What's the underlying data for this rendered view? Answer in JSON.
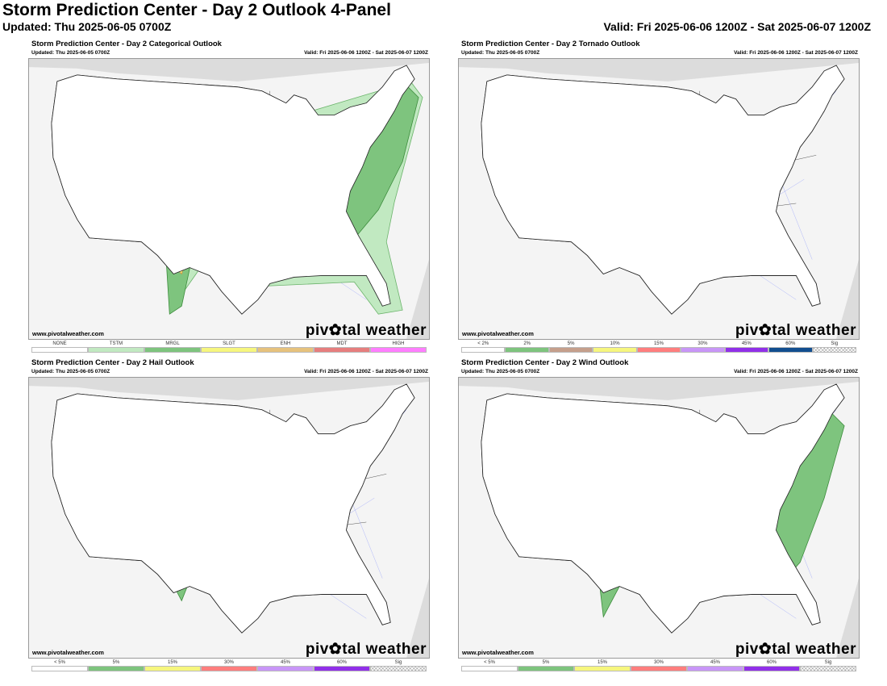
{
  "header": {
    "title": "Storm Prediction Center - Day 2 Outlook 4-Panel",
    "updated": "Updated: Thu 2025-06-05 0700Z",
    "valid": "Valid: Fri 2025-06-06 1200Z - Sat 2025-06-07 1200Z"
  },
  "panels": [
    {
      "title": "Storm Prediction Center - Day 2 Categorical Outlook",
      "updated": "Updated: Thu 2025-06-05 0700Z",
      "valid": "Valid: Fri 2025-06-06 1200Z - Sat 2025-06-07 1200Z",
      "site": "www.pivotalweather.com",
      "brand": "piv✿tal weather",
      "legend": [
        {
          "label": "NONE",
          "color": "#ffffff"
        },
        {
          "label": "TSTM",
          "color": "#c1e9c1"
        },
        {
          "label": "MRGL",
          "color": "#7ec47e"
        },
        {
          "label": "SLGT",
          "color": "#f6f67e"
        },
        {
          "label": "ENH",
          "color": "#e6c27d"
        },
        {
          "label": "MDT",
          "color": "#e67e7e"
        },
        {
          "label": "HIGH",
          "color": "#ff7eff"
        }
      ]
    },
    {
      "title": "Storm Prediction Center - Day 2 Tornado Outlook",
      "updated": "Updated: Thu 2025-06-05 0700Z",
      "valid": "Valid: Fri 2025-06-06 1200Z - Sat 2025-06-07 1200Z",
      "site": "www.pivotalweather.com",
      "brand": "piv✿tal weather",
      "legend": [
        {
          "label": "< 2%",
          "color": "#ffffff"
        },
        {
          "label": "2%",
          "color": "#7ec47e"
        },
        {
          "label": "5%",
          "color": "#c59f8c"
        },
        {
          "label": "10%",
          "color": "#f6f67e"
        },
        {
          "label": "15%",
          "color": "#ff7e7e"
        },
        {
          "label": "30%",
          "color": "#c896f7"
        },
        {
          "label": "45%",
          "color": "#9130e8"
        },
        {
          "label": "60%",
          "color": "#124e8f"
        },
        {
          "label": "Sig",
          "color": "sig"
        }
      ]
    },
    {
      "title": "Storm Prediction Center - Day 2 Hail Outlook",
      "updated": "Updated: Thu 2025-06-05 0700Z",
      "valid": "Valid: Fri 2025-06-06 1200Z - Sat 2025-06-07 1200Z",
      "site": "www.pivotalweather.com",
      "brand": "piv✿tal weather",
      "legend": [
        {
          "label": "< 5%",
          "color": "#ffffff"
        },
        {
          "label": "5%",
          "color": "#7ec47e"
        },
        {
          "label": "15%",
          "color": "#f6f67e"
        },
        {
          "label": "30%",
          "color": "#ff7e7e"
        },
        {
          "label": "45%",
          "color": "#c896f7"
        },
        {
          "label": "60%",
          "color": "#9130e8"
        },
        {
          "label": "Sig",
          "color": "sig"
        }
      ]
    },
    {
      "title": "Storm Prediction Center - Day 2 Wind Outlook",
      "updated": "Updated: Thu 2025-06-05 0700Z",
      "valid": "Valid: Fri 2025-06-06 1200Z - Sat 2025-06-07 1200Z",
      "site": "www.pivotalweather.com",
      "brand": "piv✿tal weather",
      "legend": [
        {
          "label": "< 5%",
          "color": "#ffffff"
        },
        {
          "label": "5%",
          "color": "#7ec47e"
        },
        {
          "label": "15%",
          "color": "#f6f67e"
        },
        {
          "label": "30%",
          "color": "#ff7e7e"
        },
        {
          "label": "45%",
          "color": "#c896f7"
        },
        {
          "label": "60%",
          "color": "#9130e8"
        },
        {
          "label": "Sig",
          "color": "sig"
        }
      ]
    }
  ]
}
